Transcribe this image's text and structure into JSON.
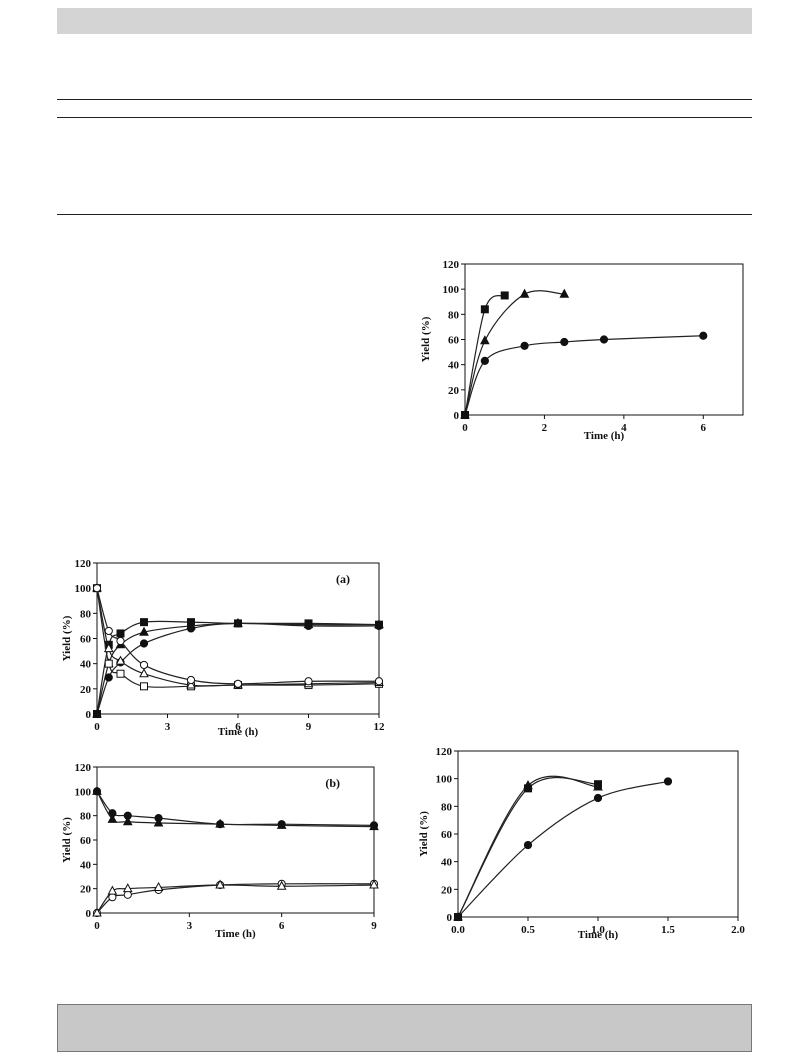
{
  "page": {
    "header_bar_color": "#d4d4d4",
    "footer_bar_color": "#c8c8c8",
    "rule_color": "#222222"
  },
  "chart_data": [
    {
      "id": "chart-top-right",
      "type": "line",
      "xlabel": "Time (h)",
      "ylabel": "Yield (%)",
      "xlim": [
        0,
        7
      ],
      "ylim": [
        0,
        120
      ],
      "xticks": [
        0,
        2,
        4,
        6
      ],
      "yticks": [
        0,
        20,
        40,
        60,
        80,
        100,
        120
      ],
      "grid": false,
      "panel_label": "",
      "series": [
        {
          "marker": "square-filled",
          "x": [
            0,
            0.5,
            1.0
          ],
          "y": [
            0,
            84,
            95
          ]
        },
        {
          "marker": "triangle-filled",
          "x": [
            0,
            0.5,
            1.5,
            2.5
          ],
          "y": [
            0,
            59,
            96,
            96
          ]
        },
        {
          "marker": "circle-filled",
          "x": [
            0,
            0.5,
            1.5,
            2.5,
            3.5,
            6
          ],
          "y": [
            0,
            43,
            55,
            58,
            60,
            63
          ]
        }
      ]
    },
    {
      "id": "chart-a",
      "type": "line",
      "xlabel": "Time (h)",
      "ylabel": "Yield (%)",
      "xlim": [
        0,
        12
      ],
      "ylim": [
        0,
        120
      ],
      "xticks": [
        0,
        3,
        6,
        9,
        12
      ],
      "yticks": [
        0,
        20,
        40,
        60,
        80,
        100,
        120
      ],
      "grid": false,
      "panel_label": "(a)",
      "series": [
        {
          "marker": "square-filled",
          "x": [
            0,
            0.5,
            1,
            2,
            4,
            6,
            9,
            12
          ],
          "y": [
            0,
            55,
            64,
            73,
            73,
            72,
            72,
            71
          ]
        },
        {
          "marker": "triangle-filled",
          "x": [
            0,
            0.5,
            1,
            2,
            4,
            6,
            9,
            12
          ],
          "y": [
            0,
            40,
            55,
            65,
            70,
            72,
            71,
            71
          ]
        },
        {
          "marker": "circle-filled",
          "x": [
            0,
            0.5,
            1,
            2,
            4,
            6,
            9,
            12
          ],
          "y": [
            0,
            29,
            41,
            56,
            68,
            72,
            70,
            70
          ]
        },
        {
          "marker": "square-open",
          "x": [
            0,
            0.5,
            1,
            2,
            4,
            6,
            9,
            12
          ],
          "y": [
            100,
            40,
            32,
            22,
            22,
            23,
            23,
            24
          ]
        },
        {
          "marker": "triangle-open",
          "x": [
            0,
            0.5,
            1,
            2,
            4,
            6,
            9,
            12
          ],
          "y": [
            100,
            52,
            42,
            32,
            23,
            23,
            24,
            25
          ]
        },
        {
          "marker": "circle-open",
          "x": [
            0,
            0.5,
            1,
            2,
            4,
            6,
            9,
            12
          ],
          "y": [
            100,
            66,
            58,
            39,
            27,
            24,
            26,
            26
          ]
        }
      ]
    },
    {
      "id": "chart-b",
      "type": "line",
      "xlabel": "Time (h)",
      "ylabel": "Yield (%)",
      "xlim": [
        0,
        9
      ],
      "ylim": [
        0,
        120
      ],
      "xticks": [
        0,
        3,
        6,
        9
      ],
      "yticks": [
        0,
        20,
        40,
        60,
        80,
        100,
        120
      ],
      "grid": false,
      "panel_label": "(b)",
      "series": [
        {
          "marker": "circle-filled",
          "x": [
            0,
            0.5,
            1,
            2,
            4,
            6,
            9
          ],
          "y": [
            100,
            82,
            80,
            78,
            73,
            73,
            72
          ]
        },
        {
          "marker": "triangle-filled",
          "x": [
            0,
            0.5,
            1,
            2,
            4,
            6,
            9
          ],
          "y": [
            100,
            77,
            75,
            74,
            73,
            72,
            71
          ]
        },
        {
          "marker": "circle-open",
          "x": [
            0,
            0.5,
            1,
            2,
            4,
            6,
            9
          ],
          "y": [
            0,
            13,
            15,
            19,
            23,
            24,
            24
          ]
        },
        {
          "marker": "triangle-open",
          "x": [
            0,
            0.5,
            1,
            2,
            4,
            6,
            9
          ],
          "y": [
            0,
            18,
            20,
            21,
            23,
            22,
            23
          ]
        }
      ]
    },
    {
      "id": "chart-bottom-right",
      "type": "line",
      "xlabel": "Time (h)",
      "ylabel": "Yield (%)",
      "xlim": [
        0,
        2
      ],
      "ylim": [
        0,
        120
      ],
      "xticks": [
        "0.0",
        "0.5",
        "1.0",
        "1.5",
        "2.0"
      ],
      "yticks": [
        0,
        20,
        40,
        60,
        80,
        100,
        120
      ],
      "grid": false,
      "panel_label": "",
      "series": [
        {
          "marker": "square-filled",
          "x": [
            0,
            0.5,
            1.0
          ],
          "y": [
            0,
            93,
            96
          ]
        },
        {
          "marker": "triangle-filled",
          "x": [
            0,
            0.5,
            1.0
          ],
          "y": [
            0,
            95,
            94
          ]
        },
        {
          "marker": "circle-filled",
          "x": [
            0,
            0.5,
            1.0,
            1.5
          ],
          "y": [
            0,
            52,
            86,
            98
          ]
        }
      ]
    }
  ]
}
